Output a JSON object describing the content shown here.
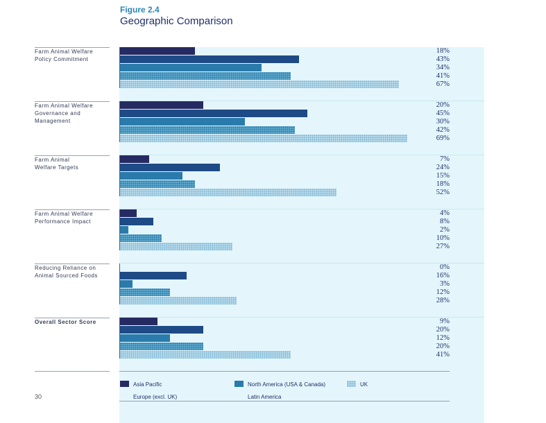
{
  "figure": {
    "label": "Figure 2.4",
    "title": "Geographic Comparison"
  },
  "page_number": "30",
  "colors": {
    "asia_pacific": "#262a62",
    "europe": "#1e4a85",
    "north_america": "#2a7bab",
    "latin_america": "#5fa8cc",
    "uk": "#b7d9ea"
  },
  "legend": {
    "items": [
      {
        "label": "Asia Pacific",
        "color_key": "asia_pacific"
      },
      {
        "label": "North America (USA & Canada)",
        "color_key": "north_america"
      },
      {
        "label": "UK",
        "color_key": "uk"
      },
      {
        "label": "Europe (excl. UK)",
        "color_key": "europe"
      },
      {
        "label": "Latin America",
        "color_key": "latin_america"
      }
    ]
  },
  "chart_data": {
    "type": "bar",
    "orientation": "horizontal",
    "xlim": [
      0,
      100
    ],
    "categories": [
      "Farm Animal Welfare Policy Commitment",
      "Farm Animal Welfare Governance and Management",
      "Farm Animal Welfare Targets",
      "Farm Animal Welfare Performance Impact",
      "Reducing Reliance on Animal Sourced Foods",
      "Overall Sector Score"
    ],
    "category_label_lines": [
      [
        "Farm Animal Welfare",
        "Policy Commitment"
      ],
      [
        "Farm Animal Welfare",
        "Governance and",
        "Management"
      ],
      [
        "Farm Animal",
        "Welfare Targets"
      ],
      [
        "Farm Animal Welfare",
        "Performance Impact"
      ],
      [
        "Reducing Reliance on",
        "Animal Sourced Foods"
      ],
      [
        "Overall Sector Score"
      ]
    ],
    "series": [
      {
        "name": "Asia Pacific",
        "values": [
          18,
          20,
          7,
          4,
          0,
          9
        ]
      },
      {
        "name": "Europe (excl. UK)",
        "values": [
          43,
          45,
          24,
          8,
          16,
          20
        ]
      },
      {
        "name": "North America (USA & Canada)",
        "values": [
          34,
          30,
          15,
          2,
          3,
          12
        ]
      },
      {
        "name": "Latin America",
        "values": [
          41,
          42,
          18,
          10,
          12,
          20
        ]
      },
      {
        "name": "UK",
        "values": [
          67,
          69,
          52,
          27,
          28,
          41
        ]
      }
    ],
    "value_labels": [
      [
        "18%",
        "43%",
        "34%",
        "41%",
        "67%"
      ],
      [
        "20%",
        "45%",
        "30%",
        "42%",
        "69%"
      ],
      [
        "7%",
        "24%",
        "15%",
        "18%",
        "52%"
      ],
      [
        "4%",
        "8%",
        "2%",
        "10%",
        "27%"
      ],
      [
        "0%",
        "16%",
        "3%",
        "12%",
        "28%"
      ],
      [
        "9%",
        "20%",
        "12%",
        "20%",
        "41%"
      ]
    ]
  }
}
